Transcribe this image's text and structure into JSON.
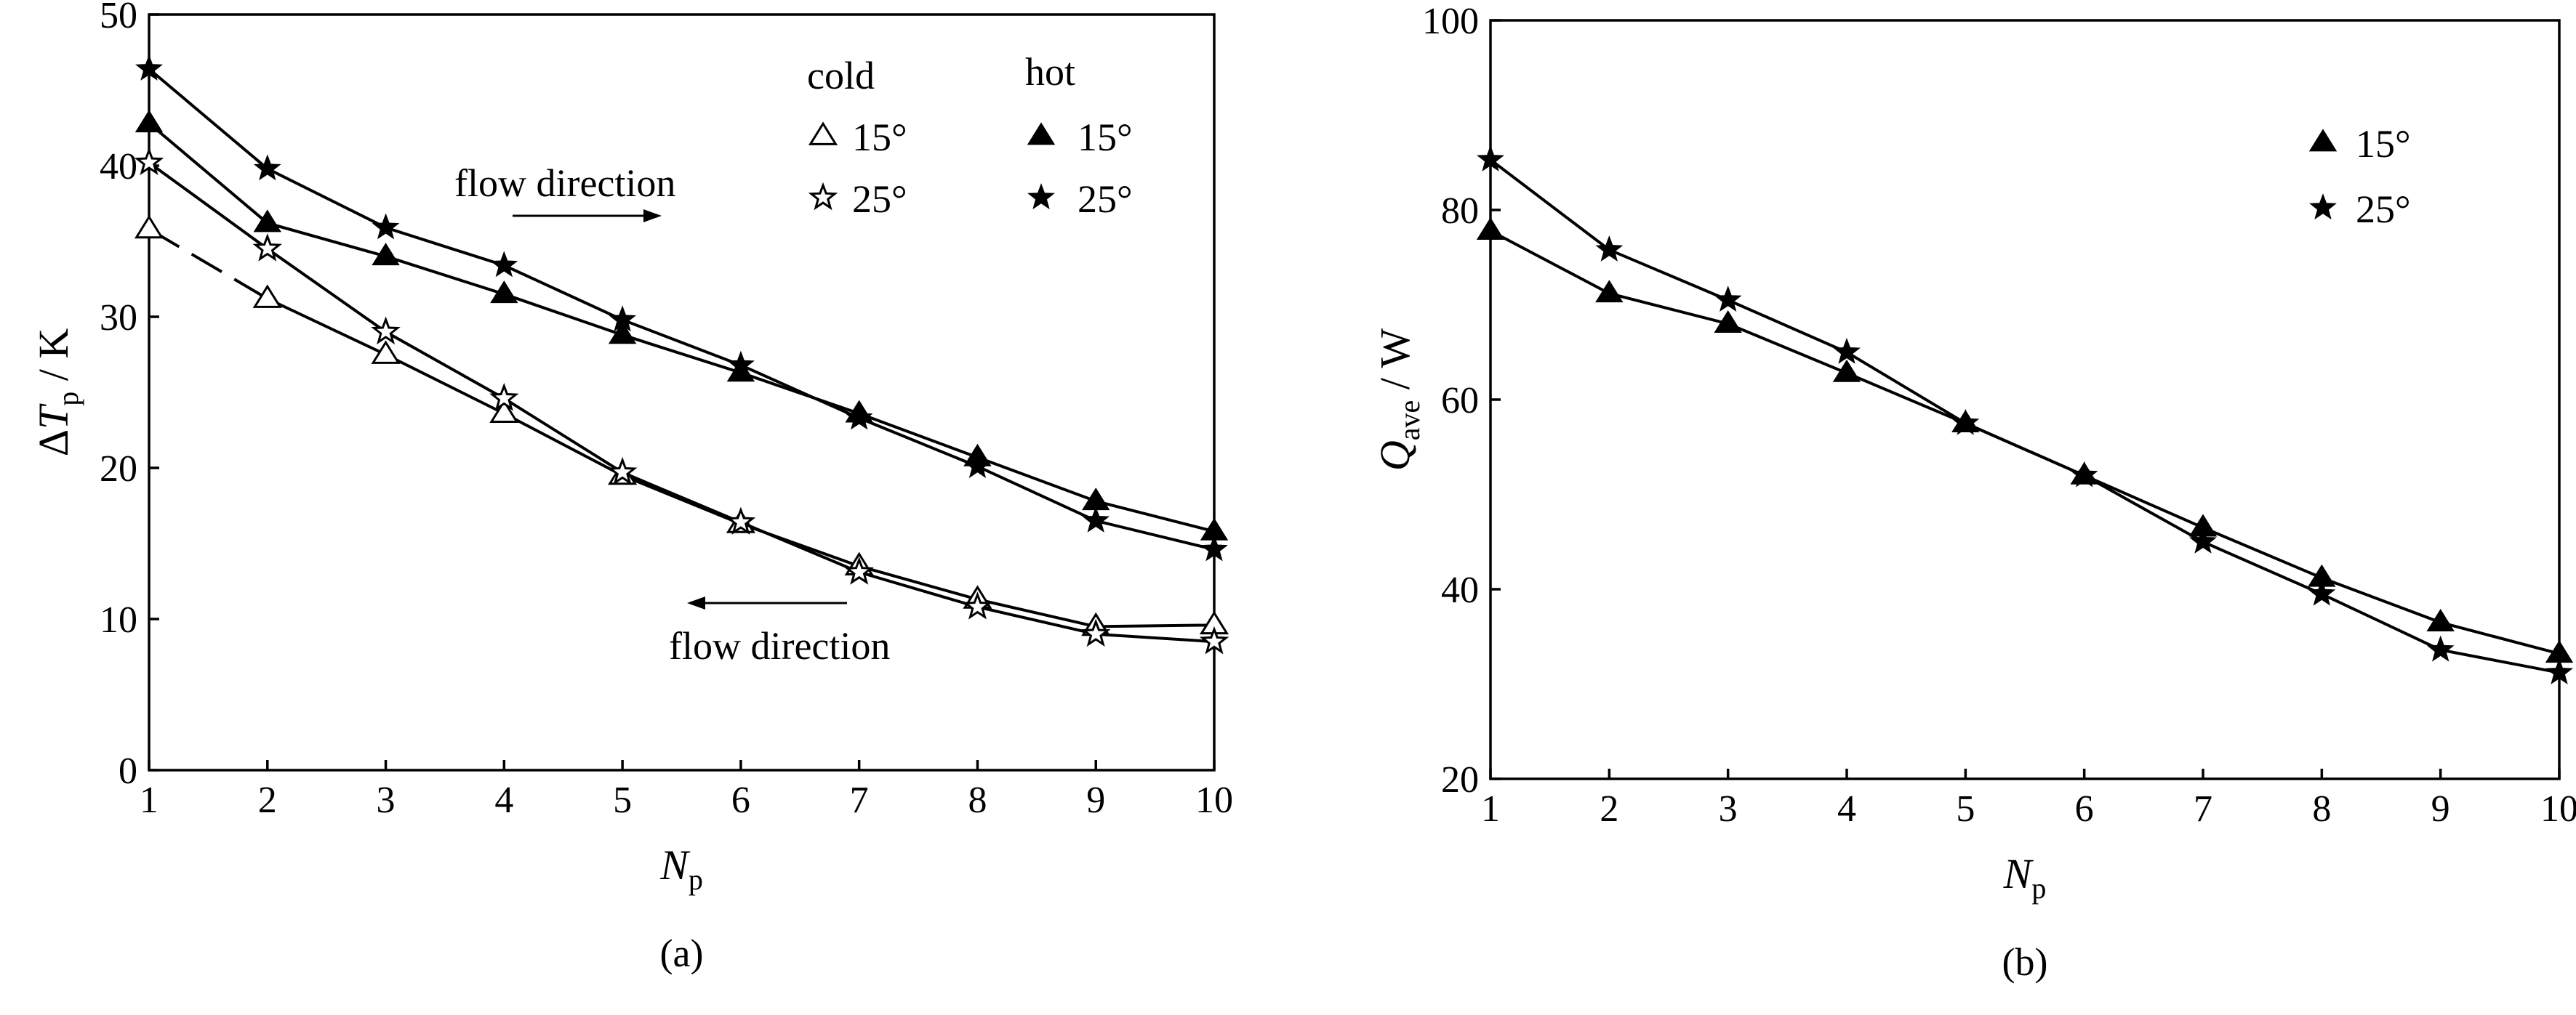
{
  "chart_data": [
    {
      "type": "line",
      "panel_label": "(a)",
      "xlabel": {
        "main": "N",
        "sub": "p"
      },
      "ylabel": {
        "pre": "ΔT",
        "sub": "p",
        "post": " / K"
      },
      "xlim": [
        1,
        10
      ],
      "ylim": [
        0,
        50
      ],
      "xticks": [
        "1",
        "2",
        "3",
        "4",
        "5",
        "6",
        "7",
        "8",
        "9",
        "10"
      ],
      "yticks": [
        "0",
        "10",
        "20",
        "30",
        "40",
        "50"
      ],
      "legend_headers": [
        "cold",
        "hot"
      ],
      "annotations": [
        "flow direction",
        "flow direction"
      ],
      "x": [
        1,
        2,
        3,
        4,
        5,
        6,
        7,
        8,
        9,
        10
      ],
      "series": [
        {
          "group": "cold",
          "name": "15°",
          "marker": "triangle-open",
          "dashed_first_segment": true,
          "values": [
            35.8,
            31.2,
            27.5,
            23.6,
            19.5,
            16.3,
            13.5,
            11.3,
            9.5,
            9.6
          ]
        },
        {
          "group": "cold",
          "name": "25°",
          "marker": "star-open",
          "values": [
            40.2,
            34.5,
            29.0,
            24.6,
            19.7,
            16.4,
            13.1,
            10.8,
            9.0,
            8.5
          ]
        },
        {
          "group": "hot",
          "name": "15°",
          "marker": "triangle-filled",
          "values": [
            42.8,
            36.2,
            34.0,
            31.5,
            28.8,
            26.3,
            23.6,
            20.7,
            17.8,
            15.8
          ]
        },
        {
          "group": "hot",
          "name": "25°",
          "marker": "star-filled",
          "values": [
            46.4,
            39.8,
            35.9,
            33.4,
            29.8,
            26.8,
            23.3,
            20.1,
            16.5,
            14.6
          ]
        }
      ]
    },
    {
      "type": "line",
      "panel_label": "(b)",
      "xlabel": {
        "main": "N",
        "sub": "p"
      },
      "ylabel": {
        "pre": "Q",
        "sub": "ave",
        "post": " / W"
      },
      "xlim": [
        1,
        10
      ],
      "ylim": [
        20,
        100
      ],
      "xticks": [
        "1",
        "2",
        "3",
        "4",
        "5",
        "6",
        "7",
        "8",
        "9",
        "10"
      ],
      "yticks": [
        "20",
        "40",
        "60",
        "80",
        "100"
      ],
      "x": [
        1,
        2,
        3,
        4,
        5,
        6,
        7,
        8,
        9,
        10
      ],
      "series": [
        {
          "name": "15°",
          "marker": "triangle-filled",
          "values": [
            77.8,
            71.2,
            68.0,
            62.8,
            57.5,
            52.0,
            46.5,
            41.2,
            36.5,
            33.2
          ]
        },
        {
          "name": "25°",
          "marker": "star-filled",
          "values": [
            85.3,
            75.8,
            70.5,
            65.0,
            57.5,
            52.0,
            45.0,
            39.5,
            33.6,
            31.2
          ]
        }
      ]
    }
  ]
}
